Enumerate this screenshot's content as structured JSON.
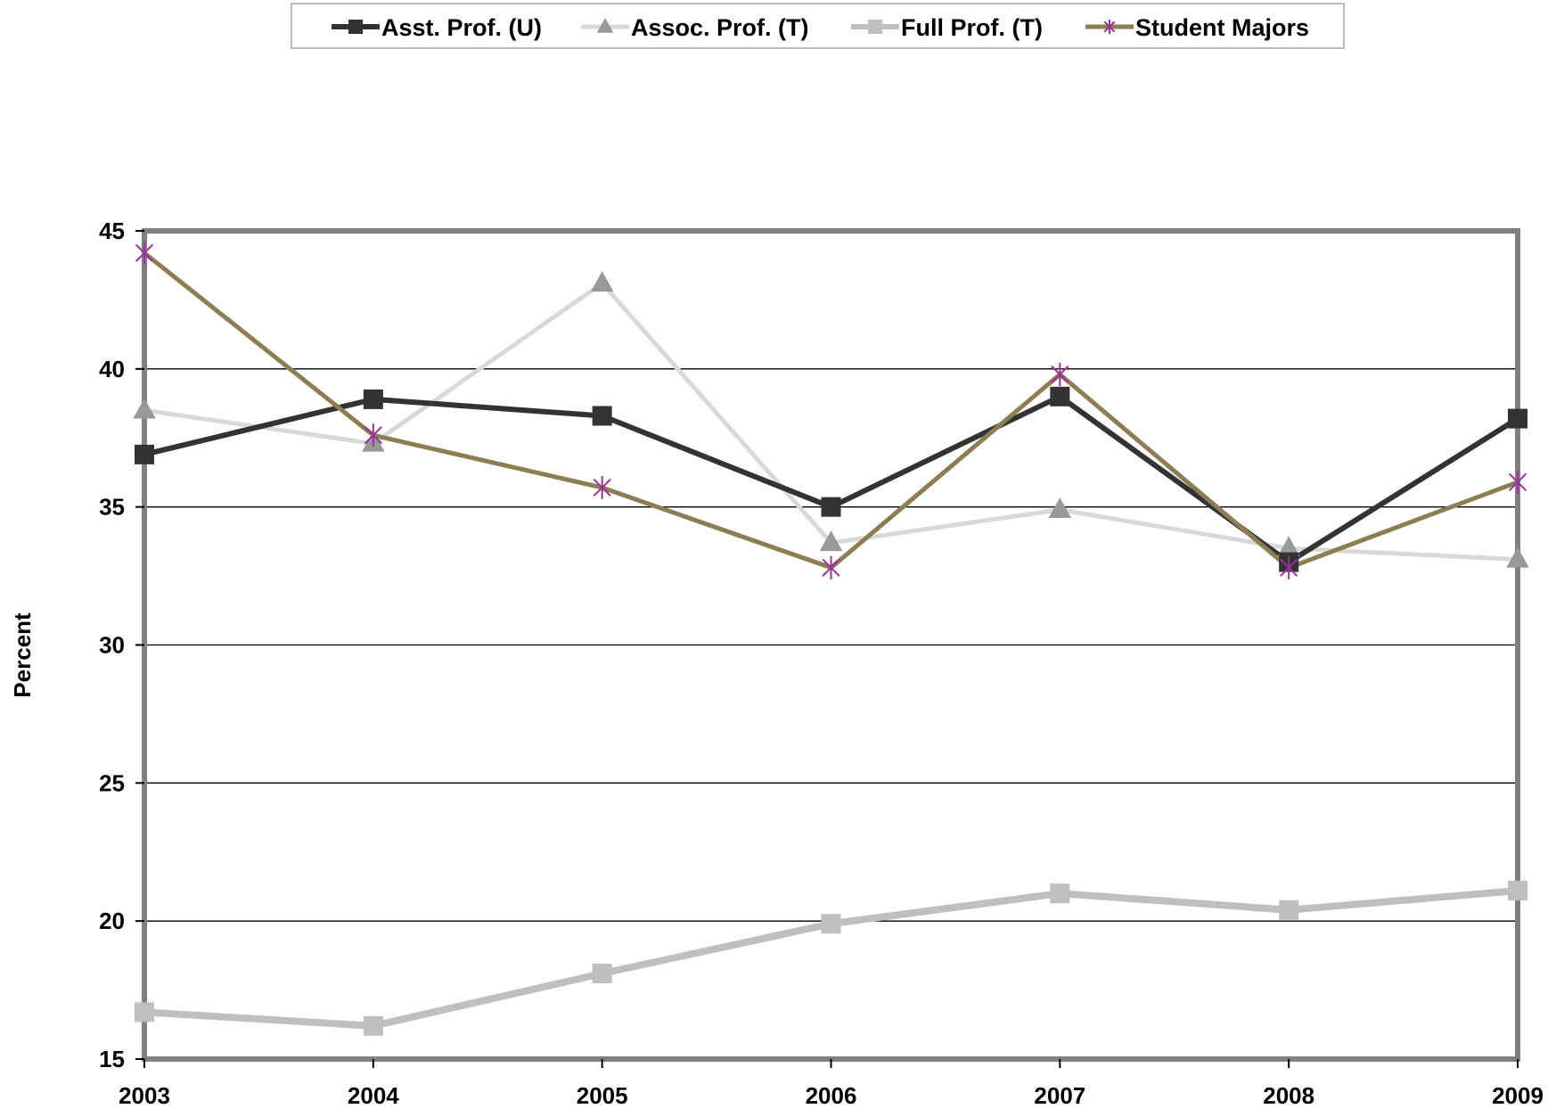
{
  "chart_data": {
    "type": "line",
    "title": "",
    "xlabel": "",
    "ylabel": "Percent",
    "categories": [
      "2003",
      "2004",
      "2005",
      "2006",
      "2007",
      "2008",
      "2009"
    ],
    "ylim": [
      15,
      45
    ],
    "yticks": [
      15,
      20,
      25,
      30,
      35,
      40,
      45
    ],
    "grid": true,
    "legend_position": "top",
    "series": [
      {
        "name": "Asst. Prof. (U)",
        "values": [
          36.9,
          38.9,
          38.3,
          35.0,
          39.0,
          33.0,
          38.2
        ],
        "color": "#333333",
        "marker": "square"
      },
      {
        "name": "Assoc. Prof. (T)",
        "values": [
          38.5,
          37.3,
          43.1,
          33.7,
          34.9,
          33.5,
          33.1
        ],
        "color": "#d9d9d9",
        "marker_color": "#999999",
        "marker": "triangle"
      },
      {
        "name": "Full Prof. (T)",
        "values": [
          16.7,
          16.2,
          18.1,
          19.9,
          21.0,
          20.4,
          21.1
        ],
        "color": "#bfbfbf",
        "marker": "square"
      },
      {
        "name": "Student Majors",
        "values": [
          44.2,
          37.6,
          35.7,
          32.8,
          39.8,
          32.8,
          35.9
        ],
        "color": "#8c7d53",
        "marker_color": "#993399",
        "marker": "star"
      }
    ]
  }
}
